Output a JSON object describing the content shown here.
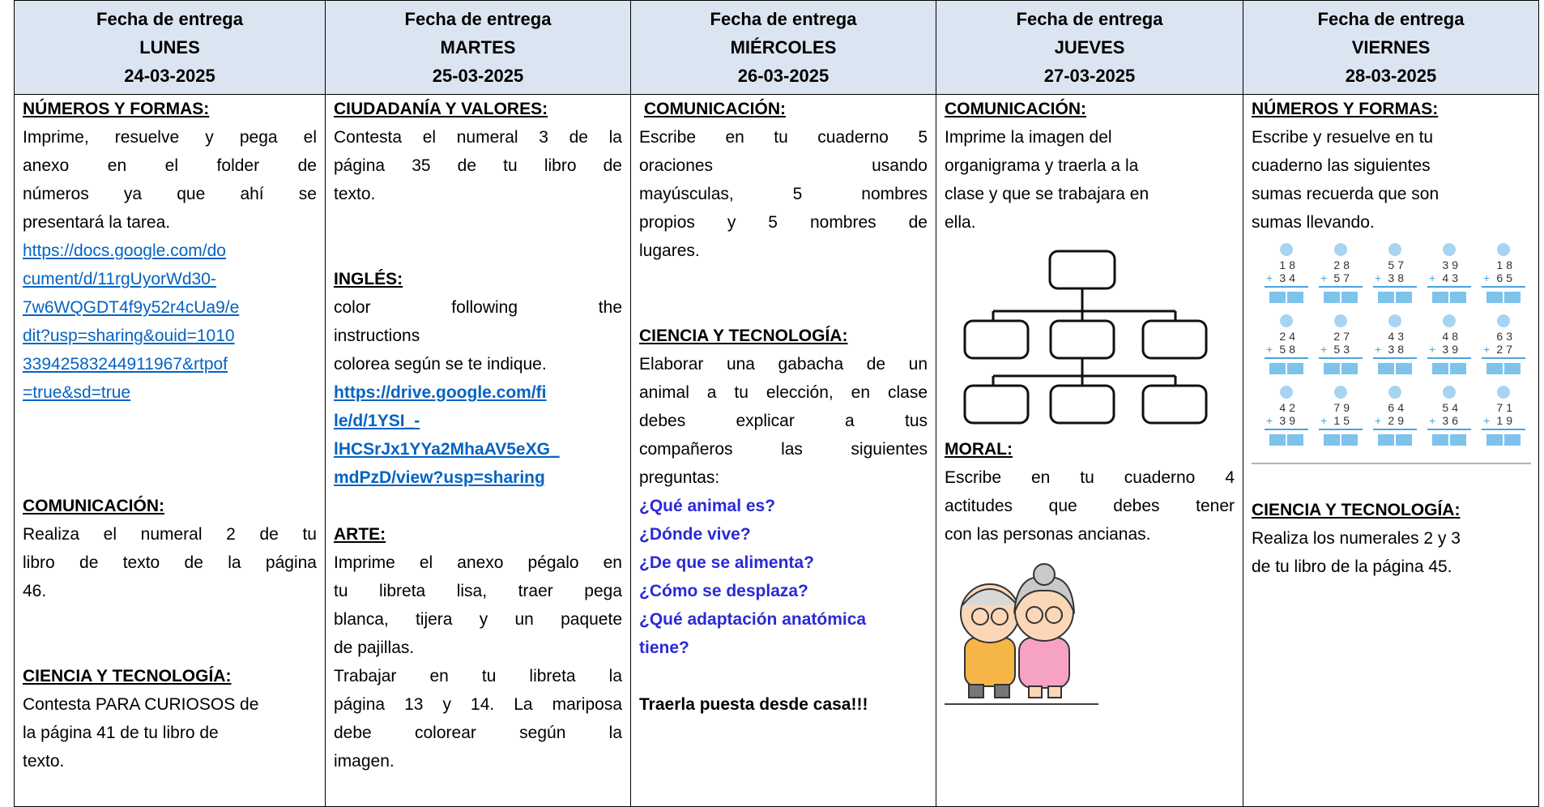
{
  "columns": [
    {
      "header": {
        "label": "Fecha de entrega",
        "day": "LUNES",
        "date": "24-03-2025"
      },
      "sections": [
        {
          "title": "NÚMEROS Y FORMAS:",
          "text": [
            "Imprime,  resuelve y pega el",
            "anexo en el folder de",
            "números ya que ahí se",
            "presentará la tarea."
          ],
          "link": [
            "https://docs.google.com/do",
            "cument/d/11rgUyorWd30-",
            "7w6WQGDT4f9y52r4cUa9/e",
            "dit?usp=sharing&ouid=1010",
            "33942583244911967&rtpof",
            "=true&sd=true"
          ]
        },
        {
          "title": "COMUNICACIÓN:",
          "text": [
            "Realiza el numeral 2 de tu",
            "libro de texto de la página",
            "46."
          ]
        },
        {
          "title": "CIENCIA Y TECNOLOGÍA:",
          "text": [
            "Contesta PARA CURIOSOS  de",
            "la página 41 de tu libro de",
            "texto."
          ]
        }
      ]
    },
    {
      "header": {
        "label": "Fecha de entrega",
        "day": "MARTES",
        "date": "25-03-2025"
      },
      "sections": [
        {
          "title": "CIUDADANÍA Y VALORES:",
          "text": [
            "Contesta el numeral 3 de la",
            "página 35 de tu libro de",
            "texto."
          ]
        },
        {
          "title": "INGLÉS:",
          "text": [
            "color following the",
            "instructions",
            "colorea según se te indique."
          ],
          "link": [
            "https://drive.google.com/fi",
            "le/d/1YSI_-",
            "lHCSrJx1YYa2MhaAV5eXG_",
            "mdPzD/view?usp=sharing"
          ]
        },
        {
          "title": "ARTE:",
          "text": [
            "Imprime el anexo pégalo en",
            "tu libreta lisa, traer pega",
            "blanca, tijera y un paquete",
            "de pajillas.",
            "Trabajar en tu libreta la",
            "página 13 y 14. La mariposa",
            "debe colorear según la",
            "imagen."
          ]
        }
      ]
    },
    {
      "header": {
        "label": "Fecha de entrega",
        "day": "MIÉRCOLES",
        "date": "26-03-2025"
      },
      "sections": [
        {
          "title": "COMUNICACIÓN:",
          "text": [
            "Escribe en tu cuaderno 5",
            "oraciones usando",
            "mayúsculas, 5 nombres",
            "propios y 5 nombres de",
            "lugares."
          ]
        },
        {
          "title": "CIENCIA Y TECNOLOGÍA:",
          "text": [
            "Elaborar una gabacha de un",
            "animal a tu elección, en clase",
            "debes explicar a tus",
            "compañeros las siguientes",
            "preguntas:"
          ],
          "questions": [
            "¿Qué animal es?",
            "¿Dónde vive?",
            "¿De que se alimenta?",
            "¿Cómo se desplaza?",
            "¿Qué adaptación anatómica",
            "tiene?"
          ],
          "closing": "Traerla puesta desde casa!!!"
        }
      ]
    },
    {
      "header": {
        "label": "Fecha de entrega",
        "day": "JUEVES",
        "date": "27-03-2025"
      },
      "sections": [
        {
          "title": "COMUNICACIÓN:",
          "text": [
            "Imprime la imagen del",
            "organigrama  y traerla a la",
            "clase y que se trabajara en",
            "ella."
          ]
        },
        {
          "title": "MORAL:",
          "text": [
            "Escribe en tu cuaderno 4",
            "actitudes que debes tener",
            "con las personas ancianas."
          ]
        }
      ]
    },
    {
      "header": {
        "label": "Fecha de entrega",
        "day": "VIERNES",
        "date": "28-03-2025"
      },
      "sections": [
        {
          "title": "NÚMEROS Y FORMAS:",
          "text": [
            "Escribe y resuelve en tu",
            "cuaderno las siguientes",
            "sumas recuerda que son",
            "sumas llevando."
          ],
          "worksheet": {
            "operator": "+",
            "exercises": [
              [
                "18",
                "34"
              ],
              [
                "28",
                "57"
              ],
              [
                "57",
                "38"
              ],
              [
                "39",
                "43"
              ],
              [
                "18",
                "65"
              ],
              [
                "24",
                "58"
              ],
              [
                "27",
                "53"
              ],
              [
                "43",
                "38"
              ],
              [
                "48",
                "39"
              ],
              [
                "63",
                "27"
              ],
              [
                "42",
                "39"
              ],
              [
                "79",
                "15"
              ],
              [
                "64",
                "29"
              ],
              [
                "54",
                "36"
              ],
              [
                "71",
                "19"
              ]
            ]
          }
        },
        {
          "title": "CIENCIA Y TECNOLOGÍA:",
          "text": [
            "Realiza los numerales 2 y 3",
            "de tu libro de la página 45."
          ]
        }
      ]
    }
  ]
}
